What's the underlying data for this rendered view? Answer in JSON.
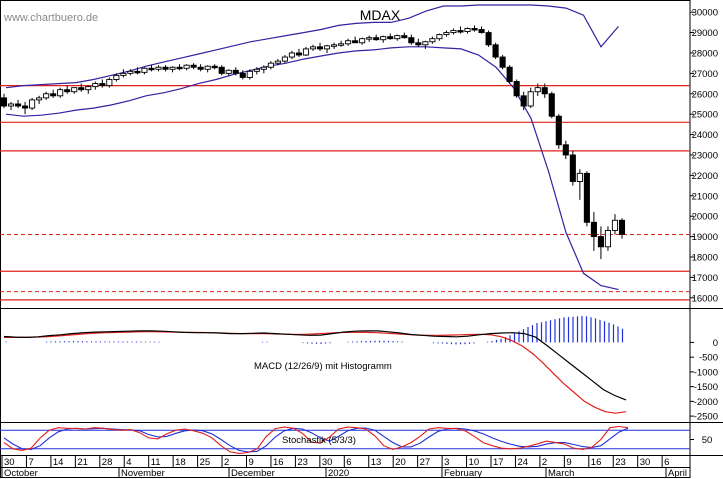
{
  "watermark": "www.chartbuero.de",
  "chart_data": [
    {
      "type": "candlestick",
      "title": "MDAX",
      "ylim": [
        15500,
        30400
      ],
      "yticks": [
        "30000",
        "29000",
        "28000",
        "27000",
        "26000",
        "25000",
        "24000",
        "23000",
        "22000",
        "21000",
        "20000",
        "19000",
        "18000",
        "17000",
        "16000"
      ],
      "support_resistance_solid": [
        26400,
        24600,
        23200,
        17300
      ],
      "support_resistance_dashed": [
        19100,
        16300
      ],
      "support_resistance_solid_low": [
        15900
      ],
      "candles": [
        [
          25800,
          26000,
          25300,
          25400
        ],
        [
          25400,
          25600,
          25200,
          25500
        ],
        [
          25500,
          25700,
          25300,
          25400
        ],
        [
          25400,
          25600,
          25000,
          25300
        ],
        [
          25300,
          25800,
          25200,
          25700
        ],
        [
          25700,
          25900,
          25500,
          25800
        ],
        [
          25800,
          26100,
          25700,
          26000
        ],
        [
          26000,
          26200,
          25800,
          25900
        ],
        [
          25900,
          26300,
          25800,
          26200
        ],
        [
          26200,
          26400,
          26000,
          26100
        ],
        [
          26100,
          26300,
          26000,
          26300
        ],
        [
          26300,
          26500,
          26100,
          26200
        ],
        [
          26200,
          26400,
          26000,
          26350
        ],
        [
          26350,
          26600,
          26200,
          26500
        ],
        [
          26500,
          26700,
          26300,
          26400
        ],
        [
          26400,
          26800,
          26300,
          26700
        ],
        [
          26700,
          27000,
          26600,
          26900
        ],
        [
          26900,
          27200,
          26800,
          27000
        ],
        [
          27000,
          27200,
          26900,
          27100
        ],
        [
          27100,
          27300,
          26950,
          27050
        ],
        [
          27050,
          27300,
          26950,
          27250
        ],
        [
          27250,
          27400,
          27100,
          27200
        ],
        [
          27200,
          27400,
          27100,
          27300
        ],
        [
          27300,
          27400,
          27100,
          27200
        ],
        [
          27200,
          27350,
          27050,
          27300
        ],
        [
          27300,
          27450,
          27150,
          27250
        ],
        [
          27250,
          27450,
          27150,
          27400
        ],
        [
          27400,
          27500,
          27200,
          27300
        ],
        [
          27300,
          27450,
          27100,
          27200
        ],
        [
          27200,
          27400,
          27050,
          27350
        ],
        [
          27350,
          27450,
          27200,
          27300
        ],
        [
          27300,
          27400,
          26900,
          27000
        ],
        [
          27000,
          27200,
          26900,
          27150
        ],
        [
          27150,
          27300,
          26900,
          27000
        ],
        [
          27000,
          27150,
          26700,
          26800
        ],
        [
          26800,
          27200,
          26700,
          27100
        ],
        [
          27100,
          27300,
          26950,
          27200
        ],
        [
          27200,
          27400,
          27000,
          27300
        ],
        [
          27300,
          27600,
          27200,
          27500
        ],
        [
          27500,
          27700,
          27400,
          27600
        ],
        [
          27600,
          27900,
          27500,
          27800
        ],
        [
          27800,
          28100,
          27700,
          28000
        ],
        [
          28000,
          28200,
          27800,
          27900
        ],
        [
          27900,
          28300,
          27850,
          28200
        ],
        [
          28200,
          28400,
          28100,
          28300
        ],
        [
          28300,
          28500,
          28100,
          28200
        ],
        [
          28200,
          28400,
          28000,
          28350
        ],
        [
          28350,
          28500,
          28200,
          28400
        ],
        [
          28400,
          28600,
          28300,
          28450
        ],
        [
          28450,
          28700,
          28350,
          28600
        ],
        [
          28600,
          28800,
          28500,
          28500
        ],
        [
          28500,
          28750,
          28400,
          28700
        ],
        [
          28700,
          28850,
          28550,
          28750
        ],
        [
          28750,
          28900,
          28600,
          28650
        ],
        [
          28650,
          28850,
          28500,
          28800
        ],
        [
          28800,
          28950,
          28650,
          28700
        ],
        [
          28700,
          28900,
          28600,
          28850
        ],
        [
          28850,
          29000,
          28700,
          28750
        ],
        [
          28750,
          28900,
          28400,
          28500
        ],
        [
          28500,
          28700,
          28300,
          28400
        ],
        [
          28400,
          28600,
          28200,
          28550
        ],
        [
          28550,
          28800,
          28450,
          28700
        ],
        [
          28700,
          28950,
          28600,
          28900
        ],
        [
          28900,
          29100,
          28800,
          29000
        ],
        [
          29000,
          29200,
          28900,
          29100
        ],
        [
          29100,
          29300,
          28950,
          29050
        ],
        [
          29050,
          29250,
          28950,
          29200
        ],
        [
          29200,
          29350,
          29050,
          29150
        ],
        [
          29150,
          29300,
          28950,
          29000
        ],
        [
          29000,
          29100,
          28300,
          28400
        ],
        [
          28400,
          28500,
          27700,
          27800
        ],
        [
          27800,
          27900,
          27200,
          27300
        ],
        [
          27300,
          27400,
          26500,
          26600
        ],
        [
          26600,
          26700,
          25800,
          25900
        ],
        [
          25900,
          26100,
          25200,
          25400
        ],
        [
          25400,
          26300,
          25300,
          26100
        ],
        [
          26100,
          26500,
          25900,
          26300
        ],
        [
          26300,
          26500,
          25800,
          26000
        ],
        [
          26000,
          26100,
          24800,
          24900
        ],
        [
          24900,
          25000,
          23300,
          23500
        ],
        [
          23500,
          23700,
          22800,
          23000
        ],
        [
          23000,
          23200,
          21500,
          21700
        ],
        [
          21700,
          22300,
          20800,
          22100
        ],
        [
          22100,
          22200,
          19500,
          19700
        ],
        [
          19700,
          20200,
          18300,
          19000
        ],
        [
          19000,
          19500,
          17900,
          18500
        ],
        [
          18500,
          19500,
          18300,
          19300
        ],
        [
          19300,
          20100,
          19100,
          19800
        ],
        [
          19800,
          19900,
          18900,
          19100
        ]
      ],
      "upper_band": [
        26300,
        26400,
        26450,
        26500,
        26550,
        26700,
        26900,
        27100,
        27350,
        27550,
        27750,
        27950,
        28150,
        28350,
        28550,
        28700,
        28850,
        29000,
        29150,
        29350,
        29450,
        29500,
        29500,
        29700,
        30050,
        30300,
        30300,
        30350,
        30350,
        30350,
        30350,
        30300,
        30200,
        29850,
        28300,
        29300
      ],
      "lower_band": [
        25000,
        24900,
        24950,
        25050,
        25200,
        25300,
        25450,
        25650,
        25900,
        26050,
        26250,
        26500,
        26700,
        26950,
        27150,
        27350,
        27500,
        27700,
        27850,
        28000,
        28100,
        28150,
        28250,
        28300,
        28300,
        28250,
        28200,
        27900,
        27300,
        26300,
        24800,
        22200,
        19200,
        17200,
        16600,
        16400
      ],
      "band_x_step": 17.5
    },
    {
      "type": "line",
      "title": "MACD (12/26/9) mit Histogramm",
      "ylim": [
        -2700,
        1100
      ],
      "yticks": [
        "0",
        "-500",
        "-1000",
        "-1500",
        "-2000",
        "-2500"
      ],
      "macd": [
        200,
        180,
        170,
        190,
        230,
        260,
        300,
        330,
        350,
        360,
        370,
        380,
        390,
        390,
        380,
        360,
        340,
        330,
        330,
        320,
        300,
        300,
        310,
        320,
        300,
        280,
        260,
        240,
        250,
        300,
        350,
        380,
        390,
        390,
        360,
        320,
        270,
        240,
        210,
        200,
        190,
        210,
        260,
        300,
        320,
        330,
        300,
        180,
        -100,
        -400,
        -700,
        -1000,
        -1300,
        -1600,
        -1800,
        -1950
      ],
      "signal": [
        170,
        170,
        175,
        180,
        190,
        210,
        240,
        270,
        300,
        320,
        330,
        340,
        350,
        360,
        365,
        360,
        355,
        345,
        340,
        335,
        330,
        320,
        310,
        300,
        300,
        295,
        290,
        280,
        270,
        275,
        290,
        310,
        330,
        340,
        345,
        340,
        330,
        310,
        290,
        270,
        250,
        240,
        240,
        250,
        260,
        270,
        275,
        260,
        190,
        60,
        -120,
        -380,
        -700,
        -1050,
        -1400,
        -1700,
        -2000,
        -2200,
        -2350,
        -2400,
        -2350
      ]
    },
    {
      "type": "line",
      "title": "Stochastik (5/3/3)",
      "ylim": [
        0,
        100
      ],
      "yticks": [
        "50"
      ],
      "k": [
        40,
        20,
        15,
        22,
        55,
        80,
        88,
        86,
        85,
        84,
        88,
        86,
        82,
        80,
        82,
        72,
        55,
        52,
        68,
        80,
        84,
        78,
        70,
        55,
        30,
        10,
        5,
        8,
        20,
        60,
        85,
        90,
        86,
        70,
        42,
        38,
        58,
        84,
        90,
        88,
        84,
        62,
        30,
        18,
        26,
        40,
        60,
        84,
        88,
        86,
        85,
        78,
        60,
        40,
        30,
        22,
        20,
        22,
        28,
        36,
        45,
        40,
        35,
        22,
        18,
        25,
        50,
        88,
        92,
        88
      ],
      "d": [
        55,
        35,
        20,
        18,
        30,
        55,
        75,
        84,
        86,
        84,
        85,
        86,
        84,
        82,
        81,
        78,
        66,
        58,
        60,
        70,
        78,
        81,
        78,
        68,
        50,
        30,
        15,
        10,
        12,
        30,
        58,
        78,
        86,
        84,
        72,
        55,
        45,
        60,
        78,
        86,
        87,
        80,
        60,
        40,
        26,
        26,
        38,
        58,
        76,
        84,
        86,
        84,
        78,
        68,
        55,
        44,
        35,
        28,
        26,
        28,
        35,
        40,
        40,
        34,
        27,
        24,
        30,
        52,
        74,
        86
      ],
      "upper_line": 80,
      "lower_line": 20
    }
  ],
  "x_axis": {
    "day_ticks": [
      "30",
      "7",
      "14",
      "21",
      "28",
      "4",
      "11",
      "18",
      "25",
      "2",
      "9",
      "16",
      "23",
      "30",
      "6",
      "13",
      "20",
      "27",
      "3",
      "10",
      "17",
      "24",
      "2",
      "9",
      "16",
      "23",
      "30",
      "6"
    ],
    "months": [
      "October",
      "November",
      "December",
      "2020",
      "February",
      "March",
      "April"
    ]
  }
}
